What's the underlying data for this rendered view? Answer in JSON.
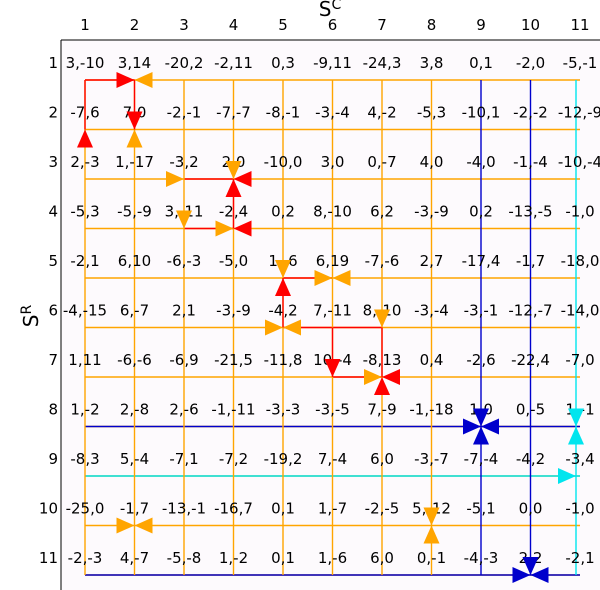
{
  "diagram": {
    "x_axis_label": "S",
    "x_axis_label_sup": "C",
    "y_axis_label": "S",
    "y_axis_label_sup": "R",
    "column_numbers": [
      "1",
      "2",
      "3",
      "4",
      "5",
      "6",
      "7",
      "8",
      "9",
      "10",
      "11"
    ],
    "row_numbers": [
      "1",
      "2",
      "3",
      "4",
      "5",
      "6",
      "7",
      "8",
      "9",
      "10",
      "11"
    ],
    "cells": [
      [
        "3,-10",
        "3,14",
        "-20,2",
        "-2,11",
        "0,3",
        "-9,11",
        "-24,3",
        "3,8",
        "0,1",
        "-2,0",
        "-5,-1"
      ],
      [
        "-7,6",
        "7,0",
        "-2,-1",
        "-7,-7",
        "-8,-1",
        "-3,-4",
        "4,-2",
        "-5,3",
        "-10,1",
        "-2,-2",
        "-12,-9"
      ],
      [
        "2,-3",
        "1,-17",
        "-3,2",
        "2,0",
        "-10,0",
        "3,0",
        "0,-7",
        "4,0",
        "-4,0",
        "-1,-4",
        "-10,-4"
      ],
      [
        "-5,3",
        "-5,-9",
        "3,-11",
        "-2,4",
        "0,2",
        "8,-10",
        "6,2",
        "-3,-9",
        "0,2",
        "-13,-5",
        "-1,0"
      ],
      [
        "-2,1",
        "6,10",
        "-6,-3",
        "-5,0",
        "1,-6",
        "6,19",
        "-7,-6",
        "2,7",
        "-17,4",
        "-1,7",
        "-18,0"
      ],
      [
        "-4,-15",
        "6,-7",
        "2,1",
        "-3,-9",
        "-4,2",
        "7,-11",
        "8,-10",
        "-3,-4",
        "-3,-1",
        "-12,-7",
        "-14,0"
      ],
      [
        "1,11",
        "-6,-6",
        "-6,9",
        "-21,5",
        "-11,8",
        "10,-4",
        "-8,13",
        "0,4",
        "-2,6",
        "-22,4",
        "-7,0"
      ],
      [
        "1,-2",
        "2,-8",
        "2,-6",
        "-1,-11",
        "-3,-3",
        "-3,-5",
        "7,-9",
        "-1,-18",
        "1,0",
        "0,-5",
        "1,-1"
      ],
      [
        "-8,3",
        "5,-4",
        "-7,1",
        "-7,2",
        "-19,2",
        "7,-4",
        "6,0",
        "-3,-7",
        "-7,-4",
        "-4,2",
        "-3,4"
      ],
      [
        "-25,0",
        "-1,7",
        "-13,-1",
        "-16,7",
        "0,1",
        "1,-7",
        "-2,-5",
        "5,-12",
        "-5,1",
        "0,0",
        "-1,0"
      ],
      [
        "-2,-3",
        "4,-7",
        "-5,-8",
        "1,-2",
        "0,1",
        "1,-6",
        "6,0",
        "0,-1",
        "-4,-3",
        "2,2",
        "-2,1"
      ]
    ],
    "colors": {
      "orange": "#FFA500",
      "red": "#FF0000",
      "blue": "#0000CC",
      "cyan": "#00E5EE",
      "grid_frame": "#000000",
      "background": "#FDFAFD"
    }
  }
}
